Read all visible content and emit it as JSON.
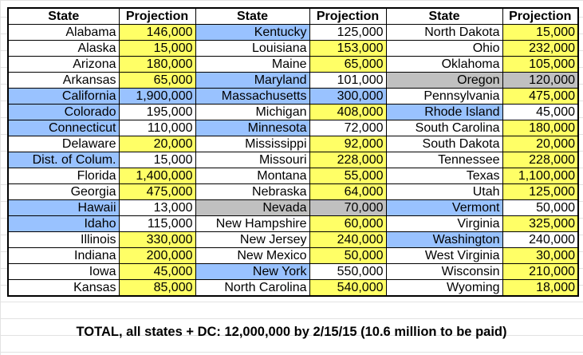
{
  "headers": [
    "State",
    "Projection",
    "State",
    "Projection",
    "State",
    "Projection"
  ],
  "rows": [
    [
      {
        "state": "Alabama",
        "value": "146,000",
        "state_color": "white",
        "value_color": "yellow"
      },
      {
        "state": "Kentucky",
        "value": "125,000",
        "state_color": "blue",
        "value_color": "white"
      },
      {
        "state": "North Dakota",
        "value": "15,000",
        "state_color": "white",
        "value_color": "yellow"
      }
    ],
    [
      {
        "state": "Alaska",
        "value": "15,000",
        "state_color": "white",
        "value_color": "yellow"
      },
      {
        "state": "Louisiana",
        "value": "153,000",
        "state_color": "white",
        "value_color": "yellow"
      },
      {
        "state": "Ohio",
        "value": "232,000",
        "state_color": "white",
        "value_color": "yellow"
      }
    ],
    [
      {
        "state": "Arizona",
        "value": "180,000",
        "state_color": "white",
        "value_color": "yellow"
      },
      {
        "state": "Maine",
        "value": "65,000",
        "state_color": "white",
        "value_color": "yellow"
      },
      {
        "state": "Oklahoma",
        "value": "105,000",
        "state_color": "white",
        "value_color": "yellow"
      }
    ],
    [
      {
        "state": "Arkansas",
        "value": "65,000",
        "state_color": "white",
        "value_color": "yellow"
      },
      {
        "state": "Maryland",
        "value": "101,000",
        "state_color": "blue",
        "value_color": "white"
      },
      {
        "state": "Oregon",
        "value": "120,000",
        "state_color": "gray",
        "value_color": "gray"
      }
    ],
    [
      {
        "state": "California",
        "value": "1,900,000",
        "state_color": "blue",
        "value_color": "blue"
      },
      {
        "state": "Massachusetts",
        "value": "300,000",
        "state_color": "blue",
        "value_color": "blue"
      },
      {
        "state": "Pennsylvania",
        "value": "475,000",
        "state_color": "white",
        "value_color": "yellow"
      }
    ],
    [
      {
        "state": "Colorado",
        "value": "195,000",
        "state_color": "blue",
        "value_color": "white"
      },
      {
        "state": "Michigan",
        "value": "408,000",
        "state_color": "white",
        "value_color": "yellow"
      },
      {
        "state": "Rhode Island",
        "value": "45,000",
        "state_color": "blue",
        "value_color": "white"
      }
    ],
    [
      {
        "state": "Connecticut",
        "value": "110,000",
        "state_color": "blue",
        "value_color": "white"
      },
      {
        "state": "Minnesota",
        "value": "72,000",
        "state_color": "blue",
        "value_color": "white"
      },
      {
        "state": "South Carolina",
        "value": "180,000",
        "state_color": "white",
        "value_color": "yellow"
      }
    ],
    [
      {
        "state": "Delaware",
        "value": "20,000",
        "state_color": "white",
        "value_color": "yellow"
      },
      {
        "state": "Mississippi",
        "value": "92,000",
        "state_color": "white",
        "value_color": "yellow"
      },
      {
        "state": "South Dakota",
        "value": "20,000",
        "state_color": "white",
        "value_color": "yellow"
      }
    ],
    [
      {
        "state": "Dist. of Colum.",
        "value": "15,000",
        "state_color": "blue",
        "value_color": "white"
      },
      {
        "state": "Missouri",
        "value": "228,000",
        "state_color": "white",
        "value_color": "yellow"
      },
      {
        "state": "Tennessee",
        "value": "228,000",
        "state_color": "white",
        "value_color": "yellow"
      }
    ],
    [
      {
        "state": "Florida",
        "value": "1,400,000",
        "state_color": "white",
        "value_color": "yellow"
      },
      {
        "state": "Montana",
        "value": "55,000",
        "state_color": "white",
        "value_color": "yellow"
      },
      {
        "state": "Texas",
        "value": "1,100,000",
        "state_color": "white",
        "value_color": "yellow"
      }
    ],
    [
      {
        "state": "Georgia",
        "value": "475,000",
        "state_color": "white",
        "value_color": "yellow"
      },
      {
        "state": "Nebraska",
        "value": "64,000",
        "state_color": "white",
        "value_color": "yellow"
      },
      {
        "state": "Utah",
        "value": "125,000",
        "state_color": "white",
        "value_color": "yellow"
      }
    ],
    [
      {
        "state": "Hawaii",
        "value": "13,000",
        "state_color": "blue",
        "value_color": "white"
      },
      {
        "state": "Nevada",
        "value": "70,000",
        "state_color": "gray",
        "value_color": "gray"
      },
      {
        "state": "Vermont",
        "value": "50,000",
        "state_color": "blue",
        "value_color": "white"
      }
    ],
    [
      {
        "state": "Idaho",
        "value": "115,000",
        "state_color": "blue",
        "value_color": "white"
      },
      {
        "state": "New Hampshire",
        "value": "60,000",
        "state_color": "white",
        "value_color": "yellow"
      },
      {
        "state": "Virginia",
        "value": "325,000",
        "state_color": "white",
        "value_color": "yellow"
      }
    ],
    [
      {
        "state": "Illinois",
        "value": "330,000",
        "state_color": "white",
        "value_color": "yellow"
      },
      {
        "state": "New Jersey",
        "value": "240,000",
        "state_color": "white",
        "value_color": "yellow"
      },
      {
        "state": "Washington",
        "value": "240,000",
        "state_color": "blue",
        "value_color": "white"
      }
    ],
    [
      {
        "state": "Indiana",
        "value": "200,000",
        "state_color": "white",
        "value_color": "yellow"
      },
      {
        "state": "New Mexico",
        "value": "50,000",
        "state_color": "white",
        "value_color": "yellow"
      },
      {
        "state": "West Virginia",
        "value": "30,000",
        "state_color": "white",
        "value_color": "yellow"
      }
    ],
    [
      {
        "state": "Iowa",
        "value": "45,000",
        "state_color": "white",
        "value_color": "yellow"
      },
      {
        "state": "New York",
        "value": "550,000",
        "state_color": "blue",
        "value_color": "white"
      },
      {
        "state": "Wisconsin",
        "value": "210,000",
        "state_color": "white",
        "value_color": "yellow"
      }
    ],
    [
      {
        "state": "Kansas",
        "value": "85,000",
        "state_color": "white",
        "value_color": "yellow"
      },
      {
        "state": "North Carolina",
        "value": "540,000",
        "state_color": "white",
        "value_color": "yellow"
      },
      {
        "state": "Wyoming",
        "value": "18,000",
        "state_color": "white",
        "value_color": "yellow"
      }
    ]
  ],
  "total_text": "TOTAL, all states + DC: 12,000,000 by 2/15/15 (10.6 million to be paid)",
  "colors": {
    "yellow": "#ffff66",
    "blue": "#99c2ff",
    "gray": "#c0c0c0",
    "white": "#ffffff"
  }
}
